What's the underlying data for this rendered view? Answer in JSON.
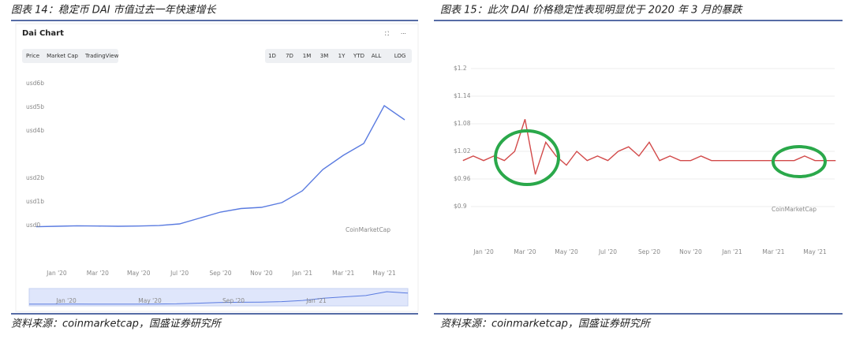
{
  "chart_data": [
    {
      "type": "line",
      "title": "图表 14：稳定币 DAI 市值过去一年快速增长",
      "heading": "Dai Chart",
      "tabs": [
        "Price",
        "Market Cap",
        "TradingView"
      ],
      "ranges": [
        "1D",
        "7D",
        "1M",
        "3M",
        "1Y",
        "YTD",
        "ALL",
        "LOG"
      ],
      "watermark": "CoinMarketCap",
      "navigator_labels": [
        "Jan '20",
        "May '20",
        "Sep '20",
        "Jan '21"
      ],
      "source": "资料来源：coinmarketcap，国盛证券研究所",
      "categories": [
        null,
        "Jan '20",
        null,
        "Mar '20",
        null,
        "May '20",
        null,
        "Jul '20",
        null,
        "Sep '20",
        null,
        "Nov '20",
        null,
        "Jan '21",
        null,
        "Mar '21",
        null,
        "May '21",
        null
      ],
      "series": [
        {
          "color": "#5a7be0",
          "values": [
            0.08,
            0.1,
            0.12,
            0.11,
            0.1,
            0.11,
            0.13,
            0.2,
            0.45,
            0.7,
            0.85,
            0.9,
            1.1,
            1.6,
            2.5,
            3.1,
            3.6,
            5.2,
            4.6
          ]
        }
      ],
      "ylim": [
        0,
        6.5
      ],
      "yticks": [
        {
          "value": 6,
          "label": "usd6b"
        },
        {
          "value": 5,
          "label": "usd5b"
        },
        {
          "value": 4,
          "label": "usd4b"
        },
        {
          "value": 2,
          "label": "usd2b"
        },
        {
          "value": 1,
          "label": "usd1b"
        },
        {
          "value": 0,
          "label": "usd0"
        }
      ],
      "grid": false
    },
    {
      "type": "line",
      "title": "图表 15：此次 DAI 价格稳定性表现明显优于 2020 年 3 月的暴跌",
      "watermark": "CoinMarketCap",
      "source": "资料来源：coinmarketcap，国盛证券研究所",
      "categories": [
        null,
        null,
        "Jan '20",
        null,
        null,
        null,
        "Mar '20",
        null,
        null,
        null,
        "May '20",
        null,
        null,
        null,
        "Jul '20",
        null,
        null,
        null,
        "Sep '20",
        null,
        null,
        null,
        "Nov '20",
        null,
        null,
        null,
        "Jan '21",
        null,
        null,
        null,
        "Mar '21",
        null,
        null,
        null,
        "May '21",
        null,
        null
      ],
      "series": [
        {
          "color": "#d24a4a",
          "values": [
            1.0,
            1.01,
            1.0,
            1.01,
            1.0,
            1.02,
            1.09,
            0.97,
            1.04,
            1.01,
            0.99,
            1.02,
            1.0,
            1.01,
            1.0,
            1.02,
            1.03,
            1.01,
            1.04,
            1.0,
            1.01,
            1.0,
            1.0,
            1.01,
            1.0,
            1.0,
            1.0,
            1.0,
            1.0,
            1.0,
            1.0,
            1.0,
            1.0,
            1.01,
            1.0,
            1.0,
            1.0
          ]
        }
      ],
      "ylim": [
        0.88,
        1.23
      ],
      "yticks": [
        {
          "value": 1.2,
          "label": "$1.2"
        },
        {
          "value": 1.14,
          "label": "$1.14"
        },
        {
          "value": 1.08,
          "label": "$1.08"
        },
        {
          "value": 1.02,
          "label": "$1.02"
        },
        {
          "value": 0.96,
          "label": "$0.96"
        },
        {
          "value": 0.9,
          "label": "$0.9"
        }
      ],
      "grid": true
    }
  ]
}
